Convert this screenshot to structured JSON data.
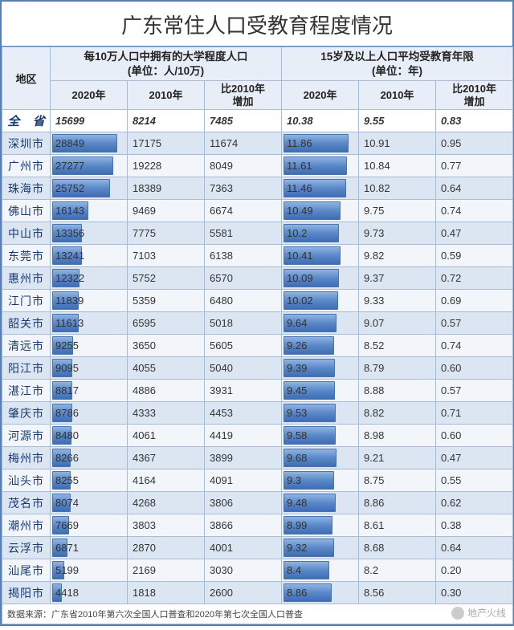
{
  "title": "广东常住人口受教育程度情况",
  "headers": {
    "region": "地区",
    "group1": "每10万人口中拥有的大学程度人口\n(单位：人/10万)",
    "group2": "15岁及以上人口平均受教育年限\n(单位：年)",
    "sub": [
      "2020年",
      "2010年",
      "比2010年\n增加",
      "2020年",
      "2010年",
      "比2010年\n增加"
    ]
  },
  "province_row": {
    "region": "全 省",
    "values": [
      "15699",
      "8214",
      "7485",
      "10.38",
      "9.55",
      "0.83"
    ]
  },
  "rows": [
    {
      "region": "深圳市",
      "v": [
        "28849",
        "17175",
        "11674",
        "11.86",
        "10.91",
        "0.95"
      ]
    },
    {
      "region": "广州市",
      "v": [
        "27277",
        "19228",
        "8049",
        "11.61",
        "10.84",
        "0.77"
      ]
    },
    {
      "region": "珠海市",
      "v": [
        "25752",
        "18389",
        "7363",
        "11.46",
        "10.82",
        "0.64"
      ]
    },
    {
      "region": "佛山市",
      "v": [
        "16143",
        "9469",
        "6674",
        "10.49",
        "9.75",
        "0.74"
      ]
    },
    {
      "region": "中山市",
      "v": [
        "13356",
        "7775",
        "5581",
        "10.2",
        "9.73",
        "0.47"
      ]
    },
    {
      "region": "东莞市",
      "v": [
        "13241",
        "7103",
        "6138",
        "10.41",
        "9.82",
        "0.59"
      ]
    },
    {
      "region": "惠州市",
      "v": [
        "12322",
        "5752",
        "6570",
        "10.09",
        "9.37",
        "0.72"
      ]
    },
    {
      "region": "江门市",
      "v": [
        "11839",
        "5359",
        "6480",
        "10.02",
        "9.33",
        "0.69"
      ]
    },
    {
      "region": "韶关市",
      "v": [
        "11613",
        "6595",
        "5018",
        "9.64",
        "9.07",
        "0.57"
      ]
    },
    {
      "region": "清远市",
      "v": [
        "9255",
        "3650",
        "5605",
        "9.26",
        "8.52",
        "0.74"
      ]
    },
    {
      "region": "阳江市",
      "v": [
        "9095",
        "4055",
        "5040",
        "9.39",
        "8.79",
        "0.60"
      ]
    },
    {
      "region": "湛江市",
      "v": [
        "8817",
        "4886",
        "3931",
        "9.45",
        "8.88",
        "0.57"
      ]
    },
    {
      "region": "肇庆市",
      "v": [
        "8786",
        "4333",
        "4453",
        "9.53",
        "8.82",
        "0.71"
      ]
    },
    {
      "region": "河源市",
      "v": [
        "8480",
        "4061",
        "4419",
        "9.58",
        "8.98",
        "0.60"
      ]
    },
    {
      "region": "梅州市",
      "v": [
        "8266",
        "4367",
        "3899",
        "9.68",
        "9.21",
        "0.47"
      ]
    },
    {
      "region": "汕头市",
      "v": [
        "8255",
        "4164",
        "4091",
        "9.3",
        "8.75",
        "0.55"
      ]
    },
    {
      "region": "茂名市",
      "v": [
        "8074",
        "4268",
        "3806",
        "9.48",
        "8.86",
        "0.62"
      ]
    },
    {
      "region": "潮州市",
      "v": [
        "7669",
        "3803",
        "3866",
        "8.99",
        "8.61",
        "0.38"
      ]
    },
    {
      "region": "云浮市",
      "v": [
        "6871",
        "2870",
        "4001",
        "9.32",
        "8.68",
        "0.64"
      ]
    },
    {
      "region": "汕尾市",
      "v": [
        "5199",
        "2169",
        "3030",
        "8.4",
        "8.2",
        "0.20"
      ]
    },
    {
      "region": "揭阳市",
      "v": [
        "4418",
        "1818",
        "2600",
        "8.86",
        "8.56",
        "0.30"
      ]
    }
  ],
  "bar_config": {
    "enabled_cols": [
      0,
      3
    ],
    "max": [
      28849,
      null,
      null,
      11.86,
      null,
      null
    ],
    "full_bar_pct": 85
  },
  "source": "数据来源：广东省2010年第六次全国人口普查和2020年第七次全国人口普查",
  "watermark": "地产火线",
  "colors": {
    "border": "#5a7fb5",
    "header_bg": "#e8eef7",
    "row_odd": "#dce6f2",
    "row_even": "#f2f6fb"
  }
}
